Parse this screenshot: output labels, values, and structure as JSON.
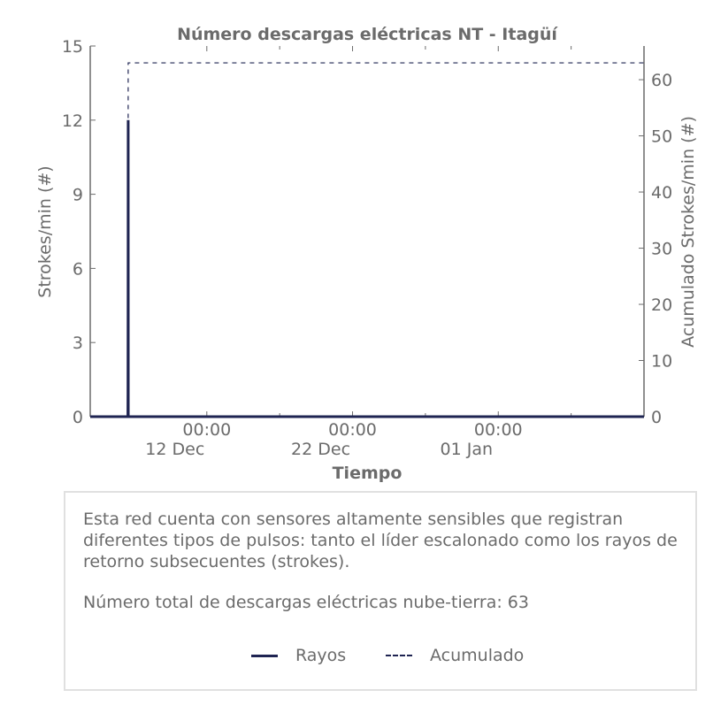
{
  "chart_data": {
    "type": "line",
    "title": "Número descargas eléctricas NT - Itagüí",
    "xlabel": "Tiempo",
    "ylabel": "Strokes/min (#)",
    "ylabel_right": "Acumulado Strokes/min (#)",
    "x_range": [
      "2023-12-04T00:00",
      "2024-01-11T00:00"
    ],
    "ylim": [
      0,
      15
    ],
    "ylim_right": [
      0,
      66
    ],
    "yticks": [
      0,
      3,
      6,
      9,
      12,
      15
    ],
    "yticks_right": [
      0,
      10,
      20,
      30,
      40,
      50,
      60
    ],
    "xticks": [
      {
        "x": "2023-12-12T00:00",
        "time": "00:00",
        "date": "12 Dec"
      },
      {
        "x": "2023-12-22T00:00",
        "time": "00:00",
        "date": "22 Dec"
      },
      {
        "x": "2024-01-01T00:00",
        "time": "00:00",
        "date": "01 Jan"
      }
    ],
    "minor_xticks": [
      "2023-12-17T00:00",
      "2023-12-27T00:00",
      "2024-01-06T00:00"
    ],
    "grid": false,
    "legend_position": "bottom",
    "series": [
      {
        "name": "Rayos",
        "axis": "left",
        "style": "solid",
        "color": "#1f2452",
        "points": [
          [
            "2023-12-04T00:00",
            0
          ],
          [
            "2023-12-06T14:00",
            0
          ],
          [
            "2023-12-06T14:10",
            1
          ],
          [
            "2023-12-06T14:20",
            5
          ],
          [
            "2023-12-06T14:30",
            12
          ],
          [
            "2023-12-06T14:40",
            0
          ],
          [
            "2024-01-11T00:00",
            0
          ]
        ]
      },
      {
        "name": "Acumulado",
        "axis": "right",
        "style": "dashed",
        "color": "#1f2452",
        "points": [
          [
            "2023-12-04T00:00",
            0
          ],
          [
            "2023-12-06T14:00",
            0
          ],
          [
            "2023-12-06T14:10",
            1
          ],
          [
            "2023-12-06T14:20",
            6
          ],
          [
            "2023-12-06T14:30",
            63
          ],
          [
            "2024-01-11T00:00",
            63
          ]
        ]
      }
    ]
  },
  "info": {
    "description": "Esta red cuenta con sensores altamente sensibles que registran diferentes tipos de pulsos: tanto el líder escalonado como los rayos de retorno subsecuentes (strokes).",
    "total": "Número total de descargas eléctricas nube-tierra: 63"
  }
}
